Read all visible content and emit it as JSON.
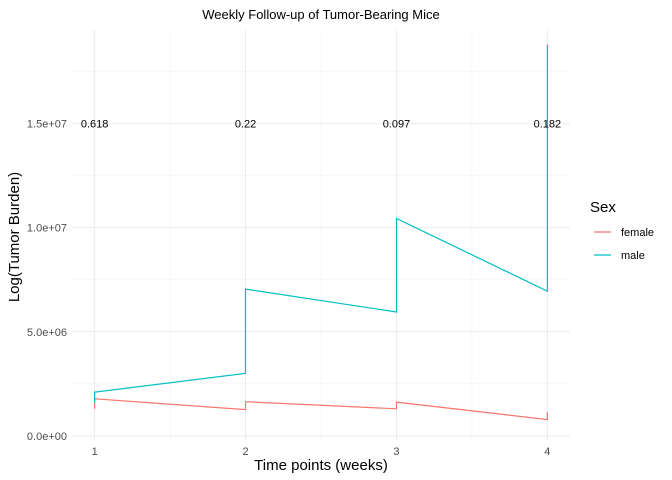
{
  "chart_data": {
    "type": "line",
    "title": "Weekly Follow-up of Tumor-Bearing Mice",
    "xlabel": "Time points (weeks)",
    "ylabel": "Log(Tumor Burden)",
    "x_ticks": [
      1,
      2,
      3,
      4
    ],
    "y_ticks": [
      {
        "value": 0,
        "label": "0.0e+00"
      },
      {
        "value": 5000000,
        "label": "5.0e+06"
      },
      {
        "value": 10000000,
        "label": "1.0e+07"
      },
      {
        "value": 15000000,
        "label": "1.5e+07"
      }
    ],
    "xlim": [
      0.85,
      4.15
    ],
    "ylim": [
      -200000,
      19500000
    ],
    "grid": true,
    "legend": {
      "title": "Sex",
      "position": "right"
    },
    "series": [
      {
        "name": "female",
        "color": "#F8766D",
        "points": [
          [
            1,
            1300000
          ],
          [
            1,
            1780000
          ],
          [
            2,
            1260000
          ],
          [
            2,
            1640000
          ],
          [
            3,
            1300000
          ],
          [
            3,
            1620000
          ],
          [
            4,
            780000
          ],
          [
            4,
            1150000
          ]
        ]
      },
      {
        "name": "male",
        "color": "#00BFC4",
        "points": [
          [
            1,
            1600000
          ],
          [
            1,
            2100000
          ],
          [
            2,
            3000000
          ],
          [
            2,
            7050000
          ],
          [
            3,
            5950000
          ],
          [
            3,
            10450000
          ],
          [
            4,
            6950000
          ],
          [
            4,
            18800000
          ]
        ]
      }
    ],
    "annotations": [
      {
        "x": 1,
        "y": 15000000,
        "text": "0.618"
      },
      {
        "x": 2,
        "y": 15000000,
        "text": "0.22"
      },
      {
        "x": 3,
        "y": 15000000,
        "text": "0.097"
      },
      {
        "x": 4,
        "y": 15000000,
        "text": "0.182"
      }
    ]
  }
}
